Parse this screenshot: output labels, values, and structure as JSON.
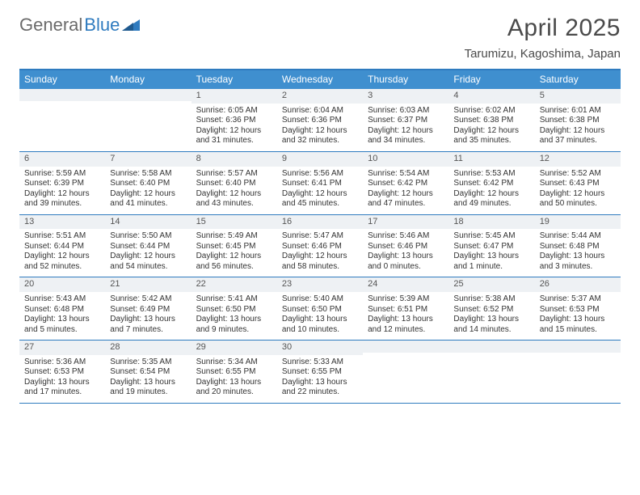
{
  "brand": {
    "name1": "General",
    "name2": "Blue"
  },
  "title": "April 2025",
  "location": "Tarumizu, Kagoshima, Japan",
  "colors": {
    "headerBar": "#3f8fcf",
    "ruleLine": "#2f7bbf",
    "dayNumBg": "#eef1f4",
    "textDark": "#4a4a4a"
  },
  "daysOfWeek": [
    "Sunday",
    "Monday",
    "Tuesday",
    "Wednesday",
    "Thursday",
    "Friday",
    "Saturday"
  ],
  "weeks": [
    [
      {
        "n": "",
        "sr": "",
        "ss": "",
        "dl": ""
      },
      {
        "n": "",
        "sr": "",
        "ss": "",
        "dl": ""
      },
      {
        "n": "1",
        "sr": "Sunrise: 6:05 AM",
        "ss": "Sunset: 6:36 PM",
        "dl": "Daylight: 12 hours and 31 minutes."
      },
      {
        "n": "2",
        "sr": "Sunrise: 6:04 AM",
        "ss": "Sunset: 6:36 PM",
        "dl": "Daylight: 12 hours and 32 minutes."
      },
      {
        "n": "3",
        "sr": "Sunrise: 6:03 AM",
        "ss": "Sunset: 6:37 PM",
        "dl": "Daylight: 12 hours and 34 minutes."
      },
      {
        "n": "4",
        "sr": "Sunrise: 6:02 AM",
        "ss": "Sunset: 6:38 PM",
        "dl": "Daylight: 12 hours and 35 minutes."
      },
      {
        "n": "5",
        "sr": "Sunrise: 6:01 AM",
        "ss": "Sunset: 6:38 PM",
        "dl": "Daylight: 12 hours and 37 minutes."
      }
    ],
    [
      {
        "n": "6",
        "sr": "Sunrise: 5:59 AM",
        "ss": "Sunset: 6:39 PM",
        "dl": "Daylight: 12 hours and 39 minutes."
      },
      {
        "n": "7",
        "sr": "Sunrise: 5:58 AM",
        "ss": "Sunset: 6:40 PM",
        "dl": "Daylight: 12 hours and 41 minutes."
      },
      {
        "n": "8",
        "sr": "Sunrise: 5:57 AM",
        "ss": "Sunset: 6:40 PM",
        "dl": "Daylight: 12 hours and 43 minutes."
      },
      {
        "n": "9",
        "sr": "Sunrise: 5:56 AM",
        "ss": "Sunset: 6:41 PM",
        "dl": "Daylight: 12 hours and 45 minutes."
      },
      {
        "n": "10",
        "sr": "Sunrise: 5:54 AM",
        "ss": "Sunset: 6:42 PM",
        "dl": "Daylight: 12 hours and 47 minutes."
      },
      {
        "n": "11",
        "sr": "Sunrise: 5:53 AM",
        "ss": "Sunset: 6:42 PM",
        "dl": "Daylight: 12 hours and 49 minutes."
      },
      {
        "n": "12",
        "sr": "Sunrise: 5:52 AM",
        "ss": "Sunset: 6:43 PM",
        "dl": "Daylight: 12 hours and 50 minutes."
      }
    ],
    [
      {
        "n": "13",
        "sr": "Sunrise: 5:51 AM",
        "ss": "Sunset: 6:44 PM",
        "dl": "Daylight: 12 hours and 52 minutes."
      },
      {
        "n": "14",
        "sr": "Sunrise: 5:50 AM",
        "ss": "Sunset: 6:44 PM",
        "dl": "Daylight: 12 hours and 54 minutes."
      },
      {
        "n": "15",
        "sr": "Sunrise: 5:49 AM",
        "ss": "Sunset: 6:45 PM",
        "dl": "Daylight: 12 hours and 56 minutes."
      },
      {
        "n": "16",
        "sr": "Sunrise: 5:47 AM",
        "ss": "Sunset: 6:46 PM",
        "dl": "Daylight: 12 hours and 58 minutes."
      },
      {
        "n": "17",
        "sr": "Sunrise: 5:46 AM",
        "ss": "Sunset: 6:46 PM",
        "dl": "Daylight: 13 hours and 0 minutes."
      },
      {
        "n": "18",
        "sr": "Sunrise: 5:45 AM",
        "ss": "Sunset: 6:47 PM",
        "dl": "Daylight: 13 hours and 1 minute."
      },
      {
        "n": "19",
        "sr": "Sunrise: 5:44 AM",
        "ss": "Sunset: 6:48 PM",
        "dl": "Daylight: 13 hours and 3 minutes."
      }
    ],
    [
      {
        "n": "20",
        "sr": "Sunrise: 5:43 AM",
        "ss": "Sunset: 6:48 PM",
        "dl": "Daylight: 13 hours and 5 minutes."
      },
      {
        "n": "21",
        "sr": "Sunrise: 5:42 AM",
        "ss": "Sunset: 6:49 PM",
        "dl": "Daylight: 13 hours and 7 minutes."
      },
      {
        "n": "22",
        "sr": "Sunrise: 5:41 AM",
        "ss": "Sunset: 6:50 PM",
        "dl": "Daylight: 13 hours and 9 minutes."
      },
      {
        "n": "23",
        "sr": "Sunrise: 5:40 AM",
        "ss": "Sunset: 6:50 PM",
        "dl": "Daylight: 13 hours and 10 minutes."
      },
      {
        "n": "24",
        "sr": "Sunrise: 5:39 AM",
        "ss": "Sunset: 6:51 PM",
        "dl": "Daylight: 13 hours and 12 minutes."
      },
      {
        "n": "25",
        "sr": "Sunrise: 5:38 AM",
        "ss": "Sunset: 6:52 PM",
        "dl": "Daylight: 13 hours and 14 minutes."
      },
      {
        "n": "26",
        "sr": "Sunrise: 5:37 AM",
        "ss": "Sunset: 6:53 PM",
        "dl": "Daylight: 13 hours and 15 minutes."
      }
    ],
    [
      {
        "n": "27",
        "sr": "Sunrise: 5:36 AM",
        "ss": "Sunset: 6:53 PM",
        "dl": "Daylight: 13 hours and 17 minutes."
      },
      {
        "n": "28",
        "sr": "Sunrise: 5:35 AM",
        "ss": "Sunset: 6:54 PM",
        "dl": "Daylight: 13 hours and 19 minutes."
      },
      {
        "n": "29",
        "sr": "Sunrise: 5:34 AM",
        "ss": "Sunset: 6:55 PM",
        "dl": "Daylight: 13 hours and 20 minutes."
      },
      {
        "n": "30",
        "sr": "Sunrise: 5:33 AM",
        "ss": "Sunset: 6:55 PM",
        "dl": "Daylight: 13 hours and 22 minutes."
      },
      {
        "n": "",
        "sr": "",
        "ss": "",
        "dl": ""
      },
      {
        "n": "",
        "sr": "",
        "ss": "",
        "dl": ""
      },
      {
        "n": "",
        "sr": "",
        "ss": "",
        "dl": ""
      }
    ]
  ]
}
